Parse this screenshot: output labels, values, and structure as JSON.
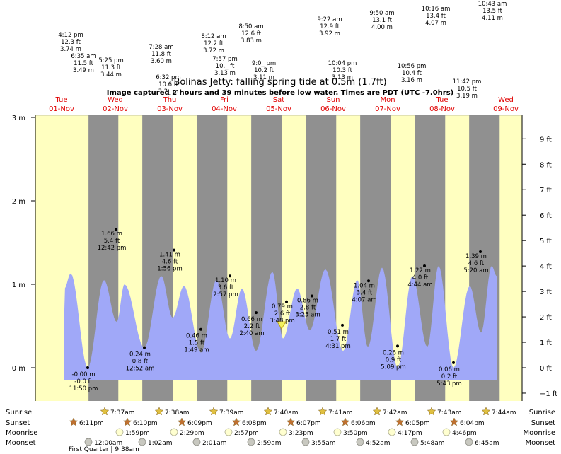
{
  "chart_data": {
    "type": "area",
    "title": "Bolinas Jetty: falling  spring tide at 0.5m (1.7ft)",
    "subtitle": "Image captured 2 hours and 39 minutes before low water. Times are PDT (UTC -7.0hrs)",
    "ylim_m": [
      -0.4,
      3.0
    ],
    "left_ticks": [
      "0 m",
      "1 m",
      "2 m",
      "3 m"
    ],
    "left_tick_values": [
      0,
      1,
      2,
      3
    ],
    "right_ticks": [
      "−1 ft",
      "0 ft",
      "1 ft",
      "2 ft",
      "3 ft",
      "4 ft",
      "5 ft",
      "6 ft",
      "7 ft",
      "8 ft",
      "9 ft"
    ],
    "right_tick_values_ft": [
      -1,
      0,
      1,
      2,
      3,
      4,
      5,
      6,
      7,
      8,
      9
    ],
    "days": [
      {
        "dow": "Tue",
        "date": "01-Nov"
      },
      {
        "dow": "Wed",
        "date": "02-Nov"
      },
      {
        "dow": "Thu",
        "date": "03-Nov"
      },
      {
        "dow": "Fri",
        "date": "04-Nov"
      },
      {
        "dow": "Sat",
        "date": "05-Nov"
      },
      {
        "dow": "Sun",
        "date": "06-Nov"
      },
      {
        "dow": "Mon",
        "date": "07-Nov"
      },
      {
        "dow": "Tue",
        "date": "08-Nov"
      },
      {
        "dow": "Wed",
        "date": "09-Nov"
      }
    ],
    "low_tides": [
      {
        "day": 0,
        "time": "11:50 pm",
        "m": "-0.00 m",
        "ft": "-0.0 ft",
        "value_m": 0.0
      },
      {
        "day": 1,
        "time": "12:42 pm",
        "m": "1.66 m",
        "ft": "5.4 ft",
        "value_m": 1.66
      },
      {
        "day": 2,
        "time": "12:52 am",
        "m": "0.24 m",
        "ft": "0.8 ft",
        "value_m": 0.24
      },
      {
        "day": 2,
        "time": "1:56 pm",
        "m": "1.41 m",
        "ft": "4.6 ft",
        "value_m": 1.41
      },
      {
        "day": 3,
        "time": "1:49 am",
        "m": "0.46 m",
        "ft": "1.5 ft",
        "value_m": 0.46
      },
      {
        "day": 3,
        "time": "2:57 pm",
        "m": "1.10 m",
        "ft": "3.6 ft",
        "value_m": 1.1
      },
      {
        "day": 4,
        "time": "2:40 am",
        "m": "0.66 m",
        "ft": "2.2 ft",
        "value_m": 0.66
      },
      {
        "day": 4,
        "time": "3:48 pm",
        "m": "0.79 m",
        "ft": "2.6 ft",
        "value_m": 0.79
      },
      {
        "day": 5,
        "time": "3:25 am",
        "m": "0.86 m",
        "ft": "2.8 ft",
        "value_m": 0.86
      },
      {
        "day": 5,
        "time": "4:31 pm",
        "m": "0.51 m",
        "ft": "1.7 ft",
        "value_m": 0.51
      },
      {
        "day": 6,
        "time": "4:07 am",
        "m": "1.04 m",
        "ft": "3.4 ft",
        "value_m": 1.04
      },
      {
        "day": 6,
        "time": "5:09 pm",
        "m": "0.26 m",
        "ft": "0.9 ft",
        "value_m": 0.26
      },
      {
        "day": 7,
        "time": "4:44 am",
        "m": "1.22 m",
        "ft": "4.0 ft",
        "value_m": 1.22
      },
      {
        "day": 7,
        "time": "5:43 pm",
        "m": "0.06 m",
        "ft": "0.2 ft",
        "value_m": 0.06
      },
      {
        "day": 8,
        "time": "5:20 am",
        "m": "1.39 m",
        "ft": "4.6 ft",
        "value_m": 1.39
      }
    ],
    "high_tides": [
      {
        "time": "4:12 pm",
        "ft": "12.3 ft",
        "m": "3.74 m"
      },
      {
        "time": "6:35 am",
        "ft": "11.5 ft",
        "m": "3.49 m"
      },
      {
        "time": "5:25 pm",
        "ft": "11.3 ft",
        "m": "3.44 m"
      },
      {
        "time": "7:28 am",
        "ft": "11.8 ft",
        "m": "3.60 m"
      },
      {
        "time": "6:32 pm",
        "ft": "10.6 ft",
        "m": "3.2_ m"
      },
      {
        "time": "8:12 am",
        "ft": "12.2 ft",
        "m": "3.72 m"
      },
      {
        "time": "7:57 pm",
        "ft": "10._ ft",
        "m": "3.13 m"
      },
      {
        "time": "8:50 am",
        "ft": "12.6 ft",
        "m": "3.83 m"
      },
      {
        "time": "9:0_ pm",
        "ft": "10.2 ft",
        "m": "3.11 m"
      },
      {
        "time": "9:22 am",
        "ft": "12.9 ft",
        "m": "3.92 m"
      },
      {
        "time": "10:04 pm",
        "ft": "10.3 ft",
        "m": "3.13 m"
      },
      {
        "time": "9:50 am",
        "ft": "13.1 ft",
        "m": "4.00 m"
      },
      {
        "time": "10:56 pm",
        "ft": "10.4 ft",
        "m": "3.16 m"
      },
      {
        "time": "10:16 am",
        "ft": "13.4 ft",
        "m": "4.07 m"
      },
      {
        "time": "11:42 pm",
        "ft": "10.5 ft",
        "m": "3.19 m"
      },
      {
        "time": "10:43 am",
        "ft": "13.5 ft",
        "m": "4.11 m"
      }
    ],
    "current_marker_m": 0.5
  },
  "rows": {
    "sunrise_label": "Sunrise",
    "sunset_label": "Sunset",
    "moonrise_label": "Moonrise",
    "moonset_label": "Moonset",
    "sunrise": [
      "7:37am",
      "7:38am",
      "7:39am",
      "7:40am",
      "7:41am",
      "7:42am",
      "7:43am",
      "7:44am"
    ],
    "sunset": [
      "6:11pm",
      "6:10pm",
      "6:09pm",
      "6:08pm",
      "6:07pm",
      "6:06pm",
      "6:05pm",
      "6:04pm"
    ],
    "moonrise": [
      "1:59pm",
      "2:29pm",
      "2:57pm",
      "3:23pm",
      "3:50pm",
      "4:17pm",
      "4:46pm"
    ],
    "moonset": [
      "12:00am",
      "1:02am",
      "2:01am",
      "2:59am",
      "3:55am",
      "4:52am",
      "5:48am",
      "6:45am"
    ],
    "moon_phase": "First Quarter | 9:38am"
  },
  "colors": {
    "day_bg": "#ffffc0",
    "night_bg": "#909090",
    "water": "#a0a8f8",
    "day_label": "#e00000",
    "sun_star": "#e0c040",
    "sunset_star": "#c07030"
  }
}
